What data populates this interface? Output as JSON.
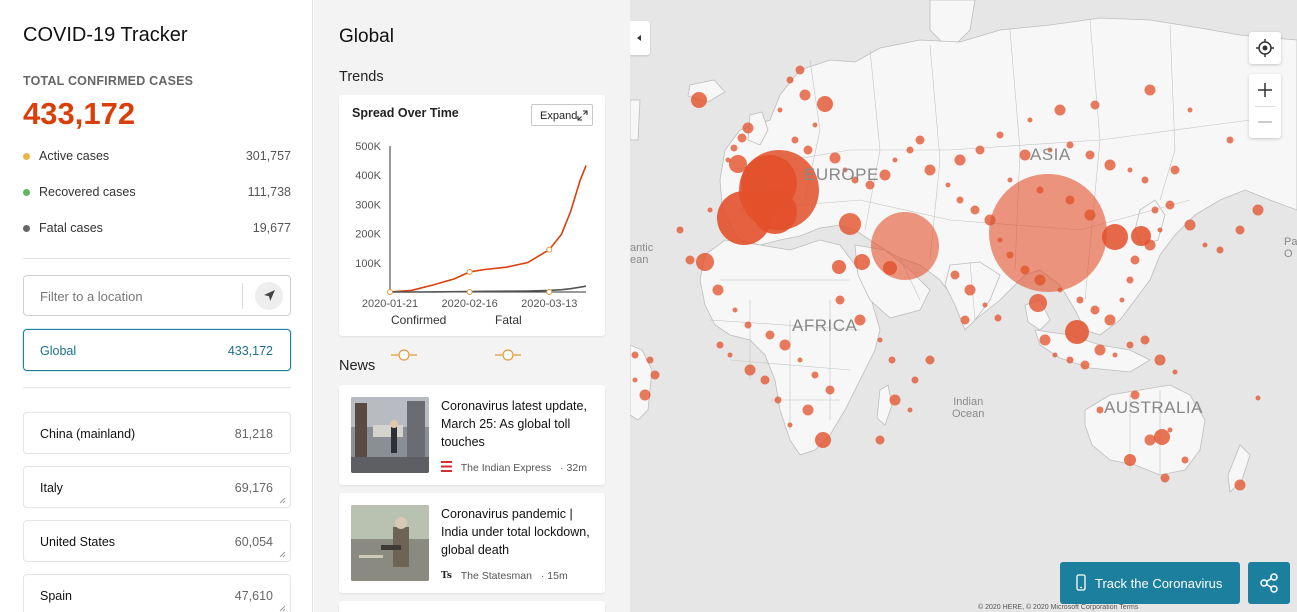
{
  "app": {
    "title": "COVID-19 Tracker"
  },
  "summary": {
    "label": "TOTAL CONFIRMED CASES",
    "total": "433,172",
    "rows": [
      {
        "label": "Active cases",
        "value": "301,757",
        "color": "#f0b443"
      },
      {
        "label": "Recovered cases",
        "value": "111,738",
        "color": "#5cb85c"
      },
      {
        "label": "Fatal cases",
        "value": "19,677",
        "color": "#666666"
      }
    ]
  },
  "filter": {
    "placeholder": "Filter to a location"
  },
  "global_card": {
    "name": "Global",
    "value": "433,172"
  },
  "locations": [
    {
      "name": "China (mainland)",
      "value": "81,218"
    },
    {
      "name": "Italy",
      "value": "69,176"
    },
    {
      "name": "United States",
      "value": "60,054"
    },
    {
      "name": "Spain",
      "value": "47,610"
    }
  ],
  "middle": {
    "title": "Global",
    "trends_label": "Trends",
    "news_label": "News"
  },
  "chart_data": {
    "type": "line",
    "title": "Spread Over Time",
    "expand_label": "Expand",
    "x_tick_labels": [
      "2020-01-21",
      "2020-02-16",
      "2020-03-13"
    ],
    "y_tick_labels": [
      "500K",
      "400K",
      "300K",
      "200K",
      "100K"
    ],
    "ylim": [
      0,
      500000
    ],
    "x": [
      "2020-01-21",
      "2020-01-28",
      "2020-02-04",
      "2020-02-11",
      "2020-02-16",
      "2020-02-21",
      "2020-02-28",
      "2020-03-06",
      "2020-03-13",
      "2020-03-17",
      "2020-03-20",
      "2020-03-23",
      "2020-03-25"
    ],
    "series": [
      {
        "name": "Confirmed",
        "color": "#d93f0b",
        "values": [
          300,
          5500,
          24000,
          45000,
          69000,
          77000,
          85000,
          101000,
          145000,
          198000,
          276000,
          380000,
          433000
        ]
      },
      {
        "name": "Fatal",
        "color": "#555555",
        "values": [
          10,
          130,
          500,
          1100,
          1700,
          2300,
          2900,
          3500,
          5500,
          7900,
          11400,
          16500,
          19700
        ]
      }
    ],
    "legend_position": "bottom"
  },
  "news": [
    {
      "headline": "Coronavirus latest update, March 25: As global toll touches",
      "source": "The Indian Express",
      "age": "32m"
    },
    {
      "headline": "Coronavirus pandemic | India under total lockdown, global death",
      "source": "The Statesman",
      "age": "15m"
    }
  ],
  "map": {
    "labels": {
      "asia": "ASIA",
      "europe": "EUROPE",
      "africa": "AFRICA",
      "australia": "AUSTRALIA"
    },
    "oceans": {
      "atlantic": "antic\nean",
      "indian": "Indian\nOcean",
      "pacific": "Pa\nO"
    },
    "track_button": "Track the Coronavirus",
    "copyright": "© 2020 HERE, © 2020 Microsoft Corporation  Terms",
    "bubble_color": "#e2502a"
  }
}
